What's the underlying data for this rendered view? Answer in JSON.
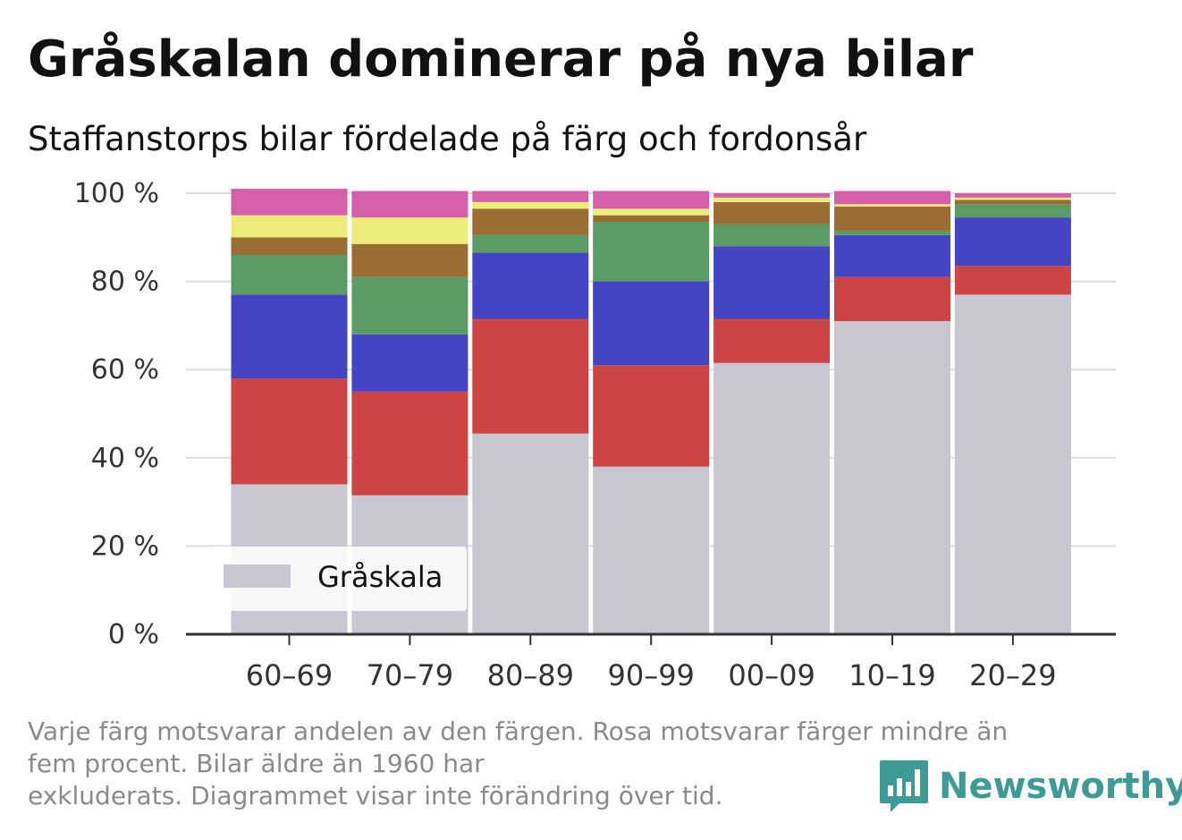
{
  "title": "Gråskalan dominerar på nya bilar",
  "subtitle": "Staffanstorps bilar fördelade på färg och fordonsår",
  "footnote": {
    "line1": "Varje färg motsvarar andelen av den färgen. Rosa motsvarar färger mindre än",
    "line2": "fem procent. Bilar äldre än 1960 har",
    "line3": "exkluderats. Diagrammet visar inte förändring över tid."
  },
  "logo": {
    "text": "Newsworthy",
    "icon": "bar-chart-speech-icon",
    "color": "#3d9a94"
  },
  "chart_data": {
    "type": "bar",
    "stacked": true,
    "categories": [
      "60–69",
      "70–79",
      "80–89",
      "90–99",
      "00–09",
      "10–19",
      "20–29"
    ],
    "ylim": [
      0,
      100
    ],
    "yticks": [
      "0 %",
      "20 %",
      "40 %",
      "60 %",
      "80 %",
      "100 %"
    ],
    "grid": true,
    "legend_position": "bottom-left",
    "series": [
      {
        "name": "Gråskala",
        "color": "#c8c7d1",
        "values": [
          34,
          31.5,
          45.5,
          38,
          61.5,
          71,
          77
        ]
      },
      {
        "color": "#cc4444",
        "values": [
          24,
          23.5,
          26,
          23,
          10,
          10,
          6.5
        ]
      },
      {
        "color": "#4444c4",
        "values": [
          19,
          13,
          15,
          19,
          16.5,
          9.5,
          11
        ]
      },
      {
        "color": "#5a9a64",
        "values": [
          9,
          13,
          4,
          13.5,
          5,
          1,
          3
        ]
      },
      {
        "color": "#9a6d33",
        "values": [
          4,
          7.5,
          6,
          1.5,
          5,
          5.5,
          1
        ]
      },
      {
        "color": "#ecec78",
        "values": [
          5,
          6,
          1.5,
          1.5,
          1,
          0.5,
          0.5
        ]
      },
      {
        "color": "#d55fa8",
        "values": [
          6,
          6,
          2.5,
          4,
          1,
          3,
          1
        ]
      }
    ]
  }
}
